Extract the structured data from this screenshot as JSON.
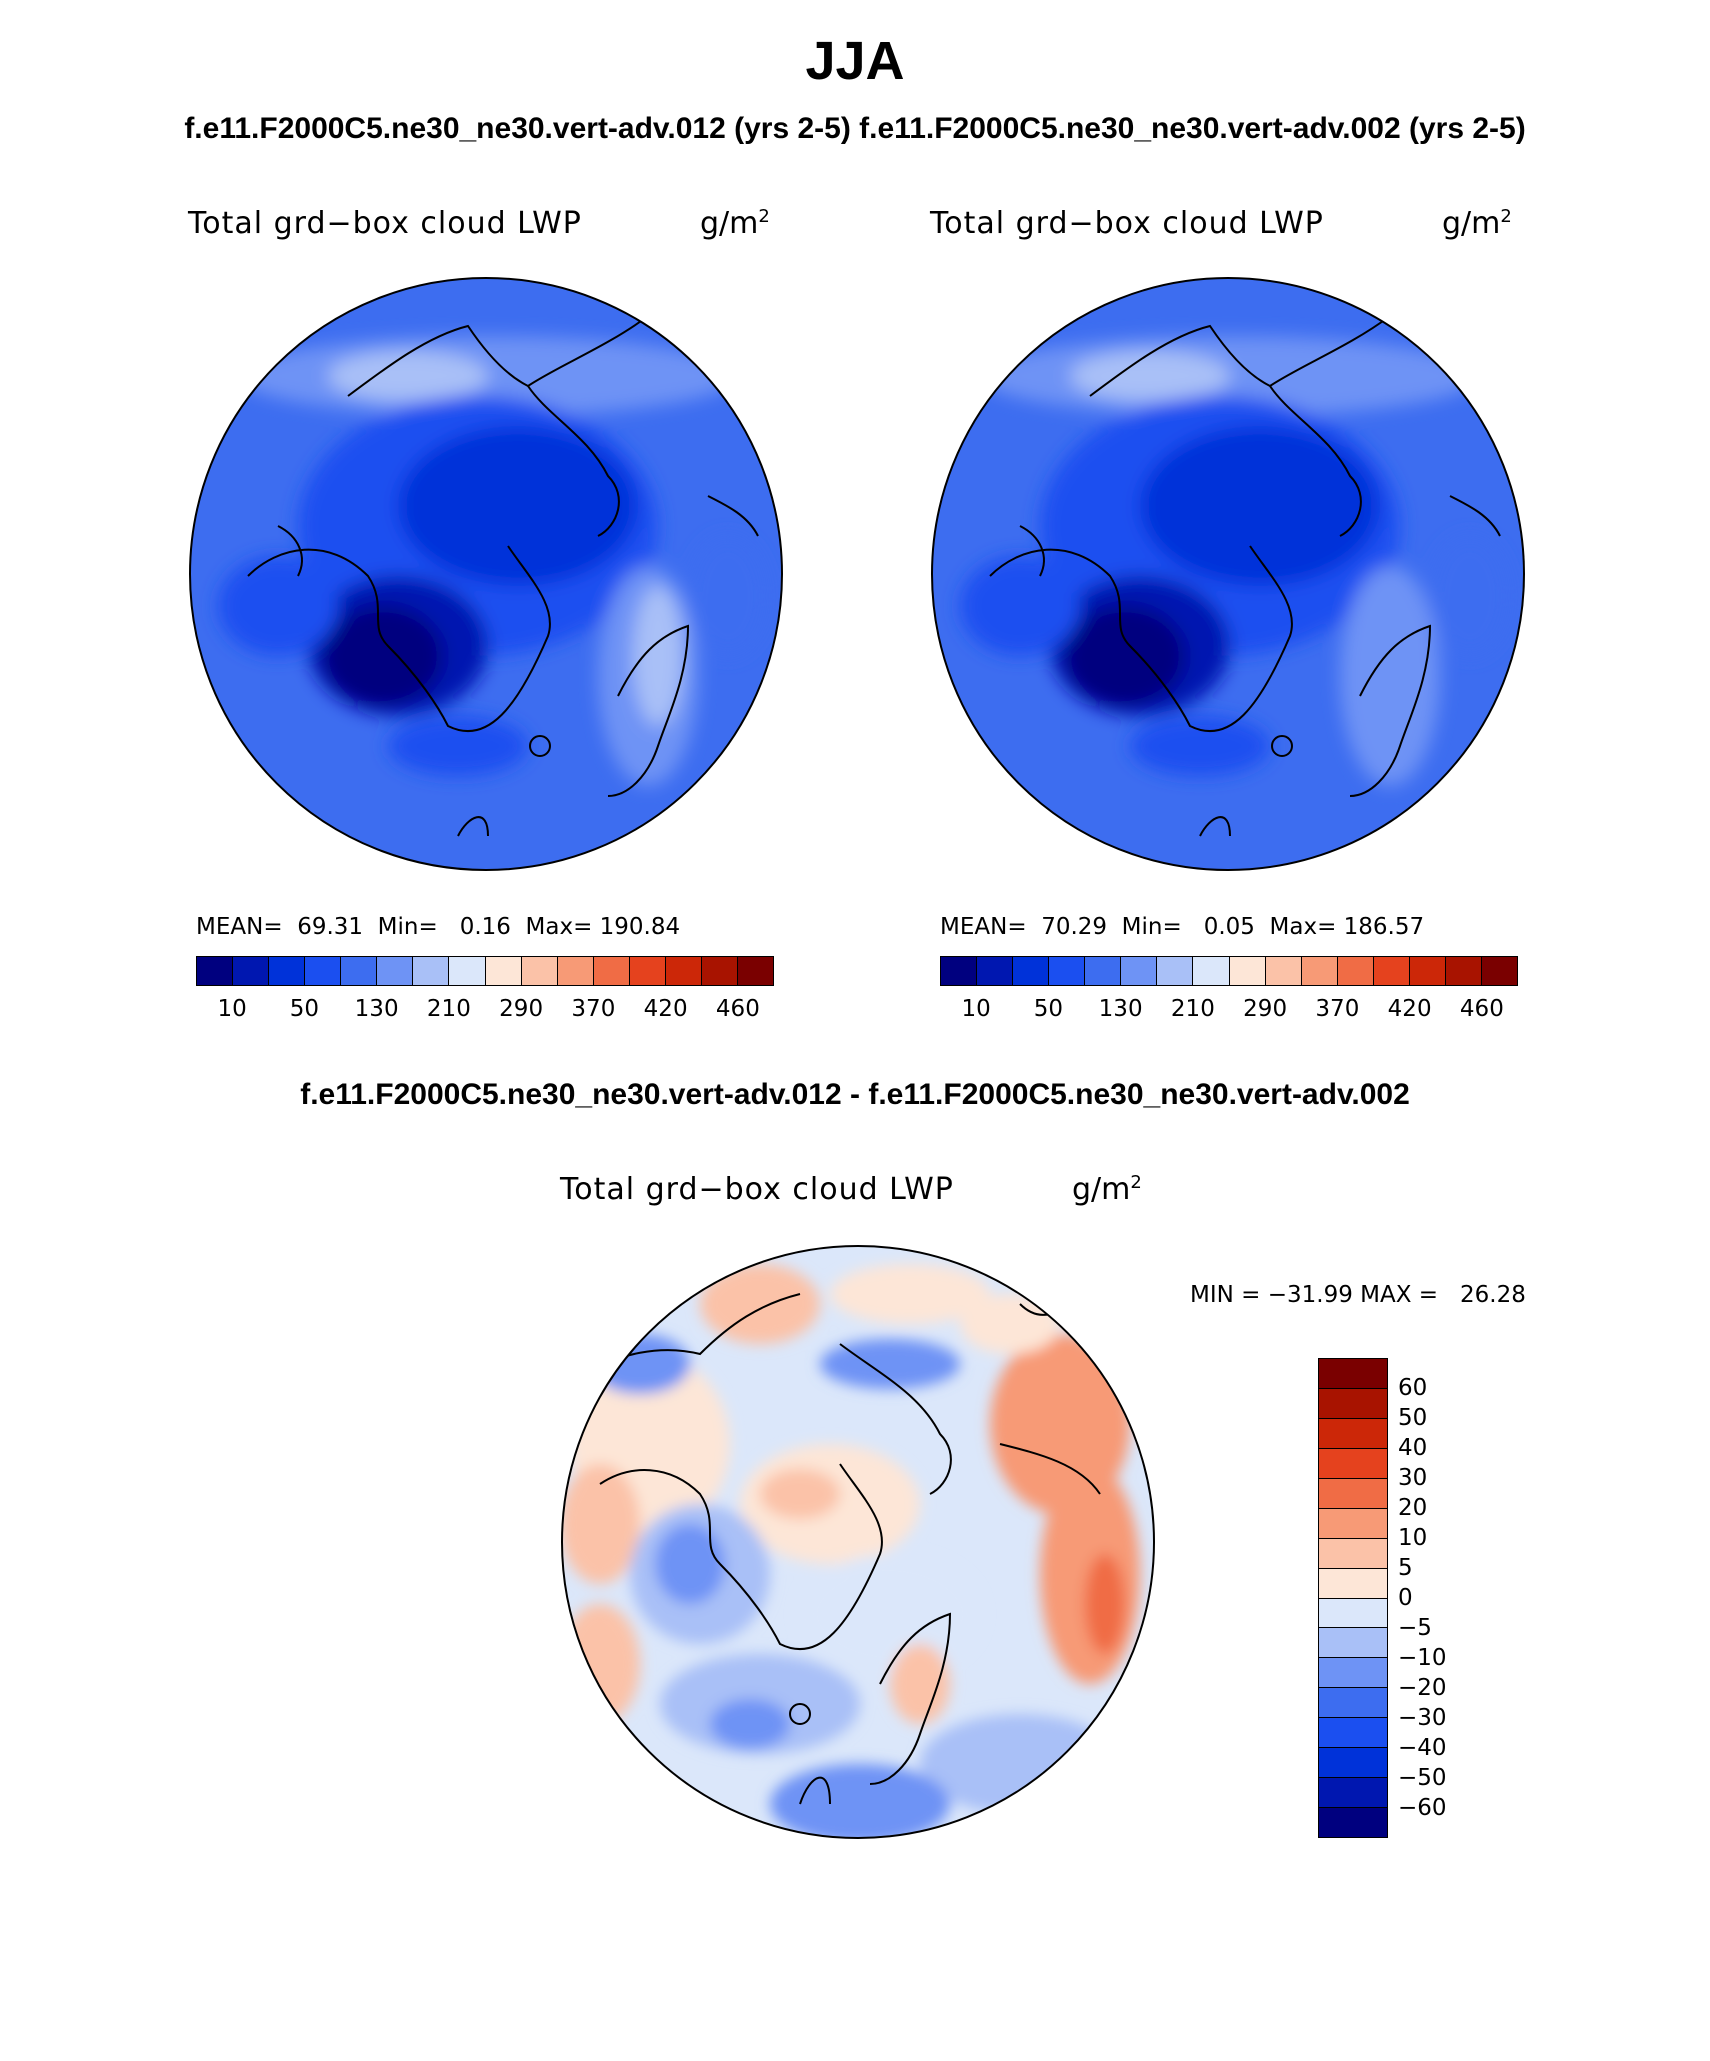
{
  "title": "JJA",
  "cases_line": "f.e11.F2000C5.ne30_ne30.vert-adv.012 (yrs 2-5) f.e11.F2000C5.ne30_ne30.vert-adv.002 (yrs 2-5)",
  "diff_title": "f.e11.F2000C5.ne30_ne30.vert-adv.012 - f.e11.F2000C5.ne30_ne30.vert-adv.002",
  "panels": [
    {
      "label": "Total grd−box cloud LWP",
      "unit": "g/m",
      "unit_sup": "2",
      "stats": "MEAN=  69.31  Min=   0.16  Max= 190.84",
      "mean": 69.31,
      "min": 0.16,
      "max": 190.84
    },
    {
      "label": "Total grd−box cloud LWP",
      "unit": "g/m",
      "unit_sup": "2",
      "stats": "MEAN=  70.29  Min=   0.05  Max= 186.57",
      "mean": 70.29,
      "min": 0.05,
      "max": 186.57
    }
  ],
  "diff_panel": {
    "label": "Total grd−box cloud LWP",
    "unit": "g/m",
    "unit_sup": "2",
    "minmax": "MIN = −31.99 MAX =   26.28",
    "min": -31.99,
    "max": 26.28
  },
  "abs_colorbar": {
    "colors": [
      "#00007f",
      "#0017b0",
      "#0032d9",
      "#1b4ff0",
      "#3d6df0",
      "#6e93f5",
      "#a9c0f7",
      "#dbe7fa",
      "#fde6d7",
      "#fbc2a8",
      "#f79a76",
      "#f06c45",
      "#e5421e",
      "#cc2708",
      "#a81300",
      "#7a0000"
    ],
    "tick_labels": [
      "10",
      "50",
      "130",
      "210",
      "290",
      "370",
      "420",
      "460"
    ]
  },
  "diff_colorbar": {
    "colors_top_to_bottom": [
      "#7a0000",
      "#a81300",
      "#cc2708",
      "#e5421e",
      "#f06c45",
      "#f79a76",
      "#fbc2a8",
      "#fde6d7",
      "#dbe7fa",
      "#a9c0f7",
      "#6e93f5",
      "#3d6df0",
      "#1b4ff0",
      "#0032d9",
      "#0017b0",
      "#00007f"
    ],
    "tick_labels": [
      "60",
      "50",
      "40",
      "30",
      "20",
      "10",
      "5",
      "0",
      "−5",
      "−10",
      "−20",
      "−30",
      "−40",
      "−50",
      "−60"
    ]
  },
  "chart_data": [
    {
      "type": "heatmap",
      "title": "Total grd−box cloud LWP",
      "units": "g/m2",
      "projection": "north polar stereographic",
      "mean": 69.31,
      "min": 0.16,
      "max": 190.84,
      "levels": [
        10,
        50,
        130,
        210,
        290,
        370,
        420,
        460
      ]
    },
    {
      "type": "heatmap",
      "title": "Total grd−box cloud LWP",
      "units": "g/m2",
      "projection": "north polar stereographic",
      "mean": 70.29,
      "min": 0.05,
      "max": 186.57,
      "levels": [
        10,
        50,
        130,
        210,
        290,
        370,
        420,
        460
      ]
    },
    {
      "type": "heatmap",
      "title": "Total grd−box cloud LWP",
      "units": "g/m2",
      "projection": "north polar stereographic",
      "min": -31.99,
      "max": 26.28,
      "levels": [
        -60,
        -50,
        -40,
        -30,
        -20,
        -10,
        -5,
        0,
        5,
        10,
        20,
        30,
        40,
        50,
        60
      ]
    }
  ]
}
